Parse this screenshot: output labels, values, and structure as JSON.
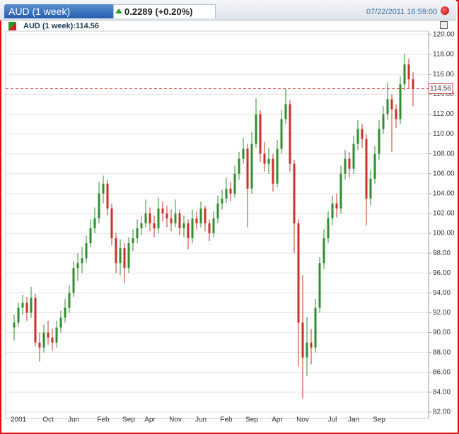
{
  "header": {
    "tab_title": "AUD (1 week)",
    "change": "0.2289 (+0.20%)",
    "timestamp": "07/22/2011 16:59:00"
  },
  "chart_data": {
    "type": "candlestick",
    "legend": "AUD (1 week):114.56",
    "last_price": 114.56,
    "up_color": "#2f8f2f",
    "down_color": "#c8322a",
    "grid": true,
    "ylim": [
      82,
      120
    ],
    "yticks": [
      {
        "value": 82,
        "label": "82.00"
      },
      {
        "value": 84,
        "label": "84.00"
      },
      {
        "value": 86,
        "label": "86.00"
      },
      {
        "value": 88,
        "label": "88.00"
      },
      {
        "value": 90,
        "label": "90.00"
      },
      {
        "value": 92,
        "label": "92.00"
      },
      {
        "value": 94,
        "label": "94.00"
      },
      {
        "value": 96,
        "label": "96.00"
      },
      {
        "value": 98,
        "label": "98.00"
      },
      {
        "value": 100,
        "label": "100.00"
      },
      {
        "value": 102,
        "label": "102.00"
      },
      {
        "value": 104,
        "label": "104.00"
      },
      {
        "value": 106,
        "label": "106.00"
      },
      {
        "value": 108,
        "label": "108.00"
      },
      {
        "value": 110,
        "label": "110.00"
      },
      {
        "value": 112,
        "label": "112.00"
      },
      {
        "value": 114,
        "label": "114.00"
      },
      {
        "value": 116,
        "label": "116.00"
      },
      {
        "value": 118,
        "label": "118.00"
      },
      {
        "value": 120,
        "label": "120.00"
      }
    ],
    "categories": [
      null,
      "2001",
      null,
      null,
      null,
      null,
      null,
      null,
      "Oct",
      null,
      null,
      null,
      null,
      null,
      "Jun",
      null,
      null,
      null,
      null,
      null,
      null,
      "Feb",
      null,
      null,
      null,
      null,
      null,
      "Sep",
      null,
      null,
      null,
      null,
      "Apr",
      null,
      null,
      null,
      null,
      null,
      "Nov",
      null,
      null,
      null,
      null,
      null,
      "Jun",
      null,
      null,
      null,
      null,
      null,
      "Feb",
      null,
      null,
      null,
      null,
      null,
      "Sep",
      null,
      null,
      null,
      null,
      null,
      "Apr",
      null,
      null,
      null,
      null,
      null,
      "Nov",
      null,
      null,
      null,
      null,
      null,
      null,
      "Jul",
      null,
      null,
      null,
      null,
      "Jan",
      null,
      null,
      null,
      null,
      null,
      "Sep",
      null,
      null,
      null,
      null,
      null,
      null,
      null,
      null
    ],
    "ohlc": [
      [
        90.5,
        91.8,
        89.2,
        91
      ],
      [
        91,
        93,
        90.6,
        92.5
      ],
      [
        92.5,
        93.8,
        91.8,
        93
      ],
      [
        93,
        93.6,
        91.2,
        92
      ],
      [
        92,
        94.6,
        91.5,
        93.5
      ],
      [
        93.5,
        93.9,
        88.6,
        89
      ],
      [
        89,
        90,
        87.1,
        88.5
      ],
      [
        88.5,
        90.8,
        88,
        90
      ],
      [
        90,
        91.2,
        88.8,
        89.5
      ],
      [
        89.5,
        90.4,
        88.2,
        89
      ],
      [
        89,
        91.2,
        88.5,
        90.5
      ],
      [
        90.5,
        92.2,
        90,
        91.5
      ],
      [
        91.5,
        93.4,
        91,
        92.5
      ],
      [
        92.5,
        94.8,
        92,
        94
      ],
      [
        94,
        97.2,
        93.6,
        96.5
      ],
      [
        96.5,
        98,
        95.2,
        97
      ],
      [
        97,
        98.6,
        96,
        97.5
      ],
      [
        97.5,
        99.8,
        97,
        99
      ],
      [
        99,
        101.4,
        98.6,
        100.5
      ],
      [
        100.5,
        102.6,
        100,
        101.5
      ],
      [
        101.5,
        105.2,
        101,
        104
      ],
      [
        104,
        105.8,
        103,
        105
      ],
      [
        105,
        105.4,
        101.8,
        102.5
      ],
      [
        102.5,
        103,
        98.8,
        99.5
      ],
      [
        99.5,
        100,
        96,
        97
      ],
      [
        97,
        99.4,
        95.8,
        98.5
      ],
      [
        98.5,
        99,
        95,
        96.5
      ],
      [
        96.5,
        99.6,
        96,
        99
      ],
      [
        99,
        100.4,
        98.2,
        99.5
      ],
      [
        99.5,
        101.4,
        99,
        100.5
      ],
      [
        100.5,
        101.8,
        99.8,
        101
      ],
      [
        101,
        103.4,
        100.6,
        102
      ],
      [
        102,
        102.6,
        100.2,
        101
      ],
      [
        101,
        101.8,
        99.6,
        100.5
      ],
      [
        100.5,
        103.6,
        100,
        102.5
      ],
      [
        102.5,
        103.2,
        101.2,
        102
      ],
      [
        102,
        102.8,
        100.6,
        101.5
      ],
      [
        101.5,
        102.4,
        100.2,
        101
      ],
      [
        101,
        103.4,
        100.6,
        102
      ],
      [
        102,
        102.4,
        99.8,
        100.5
      ],
      [
        100.5,
        101.8,
        99.6,
        101
      ],
      [
        101,
        101.4,
        98.4,
        99.5
      ],
      [
        99.5,
        102.4,
        99,
        101.5
      ],
      [
        101.5,
        102.2,
        100.4,
        101
      ],
      [
        101,
        103.2,
        100.6,
        102.5
      ],
      [
        102.5,
        102.8,
        100.2,
        101
      ],
      [
        101,
        101.4,
        99.2,
        100
      ],
      [
        100,
        102.2,
        99.6,
        101.5
      ],
      [
        101.5,
        103.8,
        101,
        103
      ],
      [
        103,
        104.4,
        102.4,
        103.5
      ],
      [
        103.5,
        105.6,
        103,
        104.5
      ],
      [
        104.5,
        105.2,
        103.2,
        104
      ],
      [
        104,
        106.8,
        103.6,
        106
      ],
      [
        106,
        108.2,
        105.4,
        107.5
      ],
      [
        107.5,
        109.6,
        107,
        108.5
      ],
      [
        108.5,
        109,
        100.6,
        104.5
      ],
      [
        104.5,
        110.2,
        104,
        109
      ],
      [
        109,
        113.6,
        108.6,
        112
      ],
      [
        112,
        112.4,
        107.2,
        108
      ],
      [
        108,
        109.2,
        106.2,
        107
      ],
      [
        107,
        108.6,
        106,
        107.5
      ],
      [
        107.5,
        108,
        104.2,
        105
      ],
      [
        105,
        109.4,
        104.6,
        108.5
      ],
      [
        108.5,
        112.4,
        108,
        111.5
      ],
      [
        111.5,
        114.6,
        111,
        113
      ],
      [
        113,
        113.4,
        106.2,
        107
      ],
      [
        107,
        107.4,
        98,
        101
      ],
      [
        101,
        101.4,
        86.6,
        91
      ],
      [
        91,
        95.8,
        83.4,
        87.5
      ],
      [
        87.5,
        91.6,
        85.6,
        89
      ],
      [
        89,
        90.4,
        86.8,
        88.5
      ],
      [
        88.5,
        93.4,
        88,
        92.5
      ],
      [
        92.5,
        97.6,
        92,
        97
      ],
      [
        97,
        100.4,
        96.4,
        99.5
      ],
      [
        99.5,
        102.2,
        99,
        101.5
      ],
      [
        101.5,
        103.8,
        100.8,
        103
      ],
      [
        103,
        104,
        101.6,
        102.5
      ],
      [
        102.5,
        106.8,
        102,
        106
      ],
      [
        106,
        108.4,
        105.4,
        107.5
      ],
      [
        107.5,
        108.2,
        105.6,
        106.5
      ],
      [
        106.5,
        109.8,
        106,
        109
      ],
      [
        109,
        111.4,
        108.4,
        110.5
      ],
      [
        110.5,
        111,
        108.6,
        109.5
      ],
      [
        109.5,
        110,
        100.8,
        103.5
      ],
      [
        103.5,
        106.4,
        102.8,
        105.5
      ],
      [
        105.5,
        108.8,
        105,
        108
      ],
      [
        108,
        111.4,
        107.4,
        110.5
      ],
      [
        110.5,
        112.8,
        110,
        112
      ],
      [
        112,
        115.2,
        111.4,
        113.5
      ],
      [
        113.5,
        114,
        108.2,
        112.5
      ],
      [
        112.5,
        113,
        110.6,
        111.5
      ],
      [
        111.5,
        115.8,
        111,
        115
      ],
      [
        115,
        118.1,
        114.4,
        117
      ],
      [
        117,
        117.6,
        114.6,
        115.5
      ],
      [
        115.5,
        116.2,
        112.8,
        114.56
      ]
    ]
  }
}
